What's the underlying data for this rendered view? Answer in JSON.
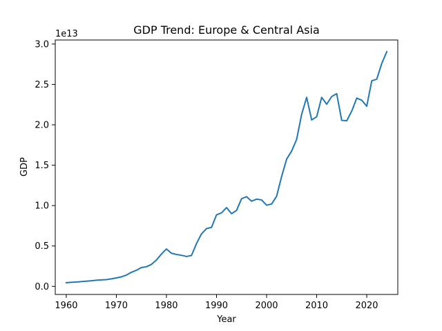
{
  "chart_data": {
    "type": "line",
    "title": "GDP Trend: Europe & Central Asia",
    "xlabel": "Year",
    "ylabel": "GDP",
    "y_offset_label": "1e13",
    "y_scale": 10000000000000.0,
    "xlim": [
      1957.8,
      2026.2
    ],
    "ylim": [
      -0.1,
      3.05
    ],
    "x_ticks": [
      1960,
      1970,
      1980,
      1990,
      2000,
      2010,
      2020
    ],
    "x_tick_labels": [
      "1960",
      "1970",
      "1980",
      "1990",
      "2000",
      "2010",
      "2020"
    ],
    "y_ticks": [
      0.0,
      0.5,
      1.0,
      1.5,
      2.0,
      2.5,
      3.0
    ],
    "y_tick_labels": [
      "0.0",
      "0.5",
      "1.0",
      "1.5",
      "2.0",
      "2.5",
      "3.0"
    ],
    "grid": false,
    "series": [
      {
        "name": "GDP",
        "color": "#1f77b4",
        "x": [
          1960,
          1961,
          1962,
          1963,
          1964,
          1965,
          1966,
          1967,
          1968,
          1969,
          1970,
          1971,
          1972,
          1973,
          1974,
          1975,
          1976,
          1977,
          1978,
          1979,
          1980,
          1981,
          1982,
          1983,
          1984,
          1985,
          1986,
          1987,
          1988,
          1989,
          1990,
          1991,
          1992,
          1993,
          1994,
          1995,
          1996,
          1997,
          1998,
          1999,
          2000,
          2001,
          2002,
          2003,
          2004,
          2005,
          2006,
          2007,
          2008,
          2009,
          2010,
          2011,
          2012,
          2013,
          2014,
          2015,
          2016,
          2017,
          2018,
          2019,
          2020,
          2021,
          2022,
          2023,
          2024
        ],
        "values": [
          0.046,
          0.05,
          0.054,
          0.059,
          0.064,
          0.07,
          0.076,
          0.08,
          0.084,
          0.093,
          0.105,
          0.118,
          0.14,
          0.174,
          0.199,
          0.233,
          0.243,
          0.272,
          0.326,
          0.4,
          0.463,
          0.41,
          0.395,
          0.385,
          0.37,
          0.382,
          0.53,
          0.65,
          0.715,
          0.73,
          0.885,
          0.91,
          0.975,
          0.9,
          0.94,
          1.085,
          1.11,
          1.055,
          1.08,
          1.07,
          1.005,
          1.02,
          1.115,
          1.36,
          1.575,
          1.675,
          1.82,
          2.13,
          2.34,
          2.06,
          2.1,
          2.34,
          2.255,
          2.35,
          2.385,
          2.055,
          2.05,
          2.17,
          2.33,
          2.305,
          2.23,
          2.545,
          2.565,
          2.76,
          2.905
        ]
      }
    ]
  }
}
